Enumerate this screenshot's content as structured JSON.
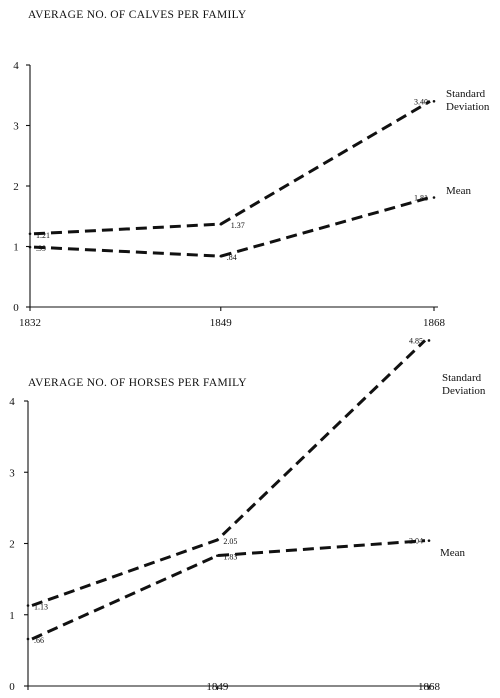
{
  "chart_data": [
    {
      "type": "line",
      "title": "AVERAGE NO. OF CALVES PER FAMILY",
      "x": [
        1832,
        1849,
        1868
      ],
      "x_tick_labels": [
        "1832",
        "1849",
        "1868"
      ],
      "y_tick_labels": [
        "0",
        "1",
        "2",
        "3",
        "4"
      ],
      "ylim": [
        0,
        4
      ],
      "grid": false,
      "series": [
        {
          "name": "Standard Deviation",
          "values": [
            1.21,
            1.37,
            3.4
          ],
          "labels": [
            "1.21",
            "1.37",
            "3.40"
          ]
        },
        {
          "name": "Mean",
          "values": [
            0.99,
            0.84,
            1.81
          ],
          "labels": [
            ".99",
            ".84",
            "1.81"
          ]
        }
      ]
    },
    {
      "type": "line",
      "title": "AVERAGE NO. OF HORSES PER FAMILY",
      "x": [
        1832,
        1849,
        1868
      ],
      "x_tick_labels": [
        "",
        "1849",
        "1868"
      ],
      "y_tick_labels": [
        "0",
        "1",
        "2",
        "3",
        "4"
      ],
      "ylim": [
        0,
        4
      ],
      "grid": false,
      "series": [
        {
          "name": "Standard Deviation",
          "values": [
            1.13,
            2.05,
            4.85
          ],
          "labels": [
            "1.13",
            "2.05",
            "4.85"
          ]
        },
        {
          "name": "Mean",
          "values": [
            0.66,
            1.83,
            2.04
          ],
          "labels": [
            ".66",
            "1.83",
            "2.04"
          ]
        }
      ]
    }
  ]
}
